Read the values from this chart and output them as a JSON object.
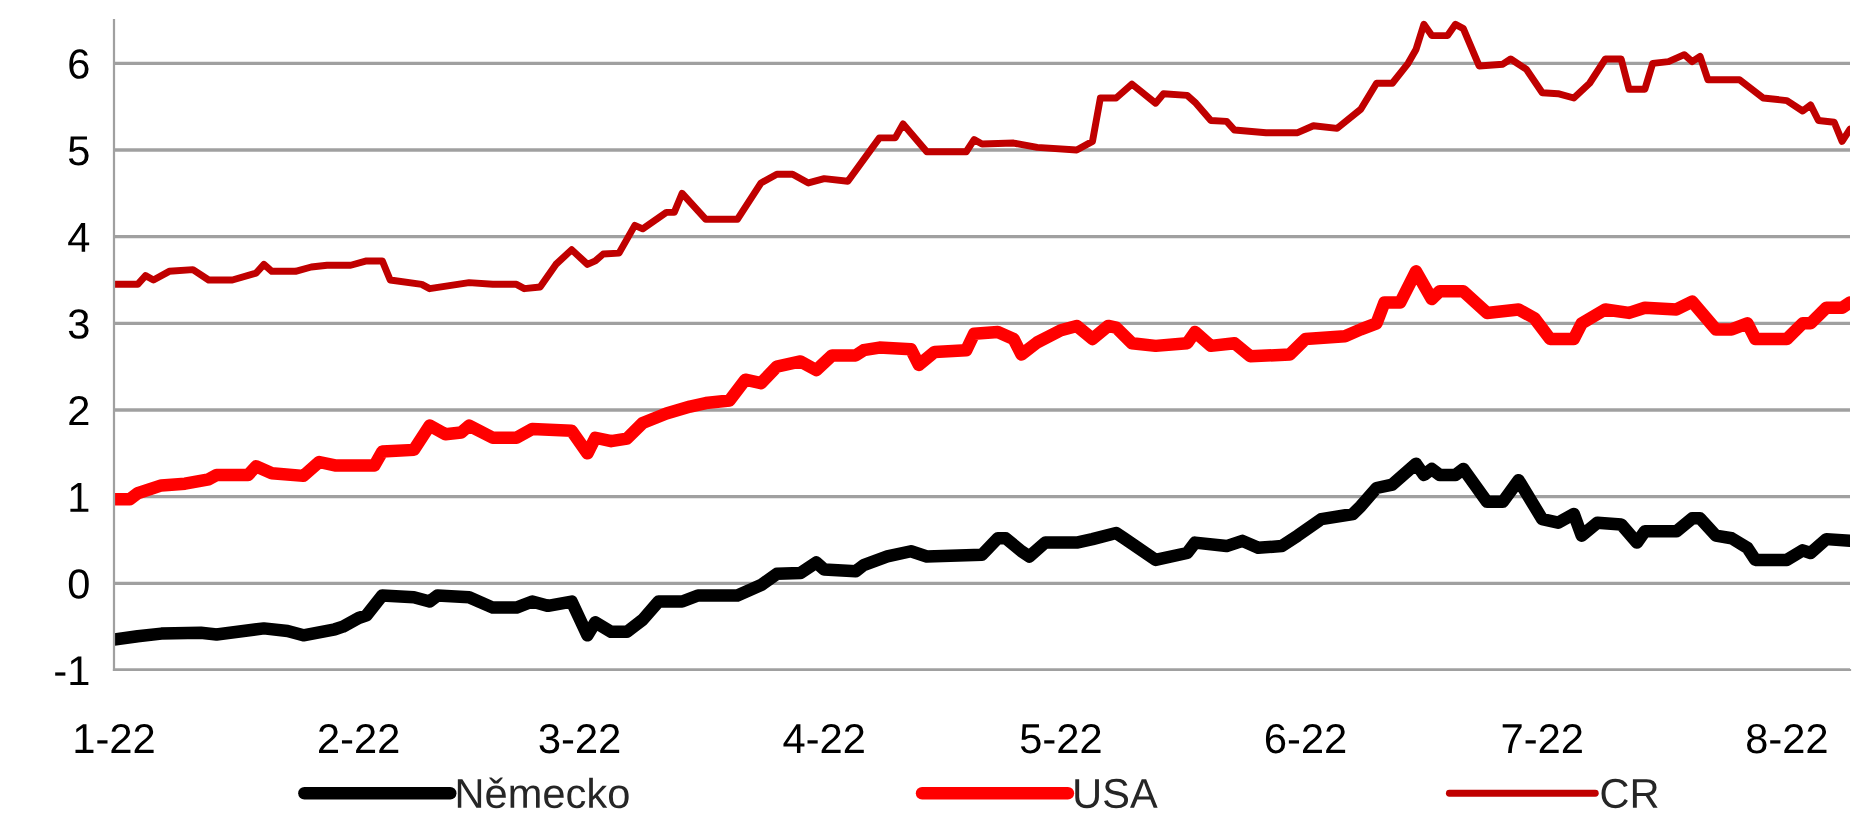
{
  "chart_data": {
    "type": "line",
    "xlim": [
      "2022-01-01",
      "2022-08-09"
    ],
    "ylim": [
      -1,
      6.5
    ],
    "xticks": [
      {
        "value": "2022-01-01",
        "label": "1-22"
      },
      {
        "value": "2022-02-01",
        "label": "2-22"
      },
      {
        "value": "2022-03-01",
        "label": "3-22"
      },
      {
        "value": "2022-04-01",
        "label": "4-22"
      },
      {
        "value": "2022-05-01",
        "label": "5-22"
      },
      {
        "value": "2022-06-01",
        "label": "6-22"
      },
      {
        "value": "2022-07-01",
        "label": "7-22"
      },
      {
        "value": "2022-08-01",
        "label": "8-22"
      }
    ],
    "yticks": [
      -1,
      0,
      1,
      2,
      3,
      4,
      5,
      6
    ],
    "grid": "y",
    "legend": "bottom",
    "marker": "none",
    "line_style": "solid",
    "series": [
      {
        "name": "Německo",
        "color": "#000000",
        "x": [
          "2022-01-01",
          "2022-01-04",
          "2022-01-07",
          "2022-01-12",
          "2022-01-14",
          "2022-01-20",
          "2022-01-23",
          "2022-01-25",
          "2022-01-29",
          "2022-01-30",
          "2022-02-01",
          "2022-02-02",
          "2022-02-04",
          "2022-02-08",
          "2022-02-10",
          "2022-02-11",
          "2022-02-15",
          "2022-02-18",
          "2022-02-21",
          "2022-02-23",
          "2022-02-25",
          "2022-02-28",
          "2022-03-02",
          "2022-03-03",
          "2022-03-05",
          "2022-03-07",
          "2022-03-09",
          "2022-03-11",
          "2022-03-14",
          "2022-03-16",
          "2022-03-21",
          "2022-03-24",
          "2022-03-26",
          "2022-03-29",
          "2022-03-31",
          "2022-04-01",
          "2022-04-05",
          "2022-04-06",
          "2022-04-09",
          "2022-04-12",
          "2022-04-14",
          "2022-04-21",
          "2022-04-23",
          "2022-04-24",
          "2022-04-26",
          "2022-04-27",
          "2022-04-29",
          "2022-05-03",
          "2022-05-05",
          "2022-05-08",
          "2022-05-09",
          "2022-05-13",
          "2022-05-17",
          "2022-05-18",
          "2022-05-22",
          "2022-05-24",
          "2022-05-26",
          "2022-05-29",
          "2022-05-31",
          "2022-06-03",
          "2022-06-07",
          "2022-06-08",
          "2022-06-10",
          "2022-06-12",
          "2022-06-15",
          "2022-06-16",
          "2022-06-17",
          "2022-06-18",
          "2022-06-20",
          "2022-06-21",
          "2022-06-24",
          "2022-06-26",
          "2022-06-28",
          "2022-07-01",
          "2022-07-03",
          "2022-07-05",
          "2022-07-06",
          "2022-07-08",
          "2022-07-11",
          "2022-07-13",
          "2022-07-14",
          "2022-07-18",
          "2022-07-20",
          "2022-07-21",
          "2022-07-23",
          "2022-07-25",
          "2022-07-27",
          "2022-07-28",
          "2022-08-01",
          "2022-08-03",
          "2022-08-04",
          "2022-08-06",
          "2022-08-09"
        ],
        "values": [
          -0.65,
          -0.61,
          -0.58,
          -0.57,
          -0.59,
          -0.52,
          -0.55,
          -0.6,
          -0.53,
          -0.5,
          -0.4,
          -0.37,
          -0.14,
          -0.16,
          -0.21,
          -0.14,
          -0.16,
          -0.28,
          -0.28,
          -0.21,
          -0.26,
          -0.21,
          -0.6,
          -0.45,
          -0.56,
          -0.56,
          -0.42,
          -0.21,
          -0.21,
          -0.14,
          -0.14,
          -0.02,
          0.11,
          0.12,
          0.24,
          0.16,
          0.14,
          0.21,
          0.31,
          0.37,
          0.31,
          0.33,
          0.52,
          0.52,
          0.37,
          0.31,
          0.47,
          0.47,
          0.51,
          0.58,
          0.52,
          0.27,
          0.35,
          0.47,
          0.43,
          0.49,
          0.41,
          0.43,
          0.55,
          0.74,
          0.8,
          0.89,
          1.1,
          1.14,
          1.38,
          1.25,
          1.32,
          1.25,
          1.25,
          1.32,
          0.94,
          0.94,
          1.19,
          0.74,
          0.7,
          0.8,
          0.55,
          0.7,
          0.68,
          0.47,
          0.6,
          0.6,
          0.75,
          0.75,
          0.55,
          0.52,
          0.41,
          0.27,
          0.27,
          0.38,
          0.35,
          0.51,
          0.49
        ]
      },
      {
        "name": "USA",
        "color": "#ff0000",
        "x": [
          "2022-01-01",
          "2022-01-03",
          "2022-01-04",
          "2022-01-07",
          "2022-01-10",
          "2022-01-13",
          "2022-01-14",
          "2022-01-18",
          "2022-01-19",
          "2022-01-21",
          "2022-01-25",
          "2022-01-27",
          "2022-01-29",
          "2022-02-03",
          "2022-02-04",
          "2022-02-08",
          "2022-02-10",
          "2022-02-12",
          "2022-02-14",
          "2022-02-15",
          "2022-02-18",
          "2022-02-21",
          "2022-02-23",
          "2022-02-28",
          "2022-03-02",
          "2022-03-03",
          "2022-03-05",
          "2022-03-07",
          "2022-03-09",
          "2022-03-12",
          "2022-03-15",
          "2022-03-17",
          "2022-03-20",
          "2022-03-22",
          "2022-03-24",
          "2022-03-26",
          "2022-03-29",
          "2022-03-31",
          "2022-04-02",
          "2022-04-05",
          "2022-04-06",
          "2022-04-08",
          "2022-04-12",
          "2022-04-13",
          "2022-04-15",
          "2022-04-19",
          "2022-04-20",
          "2022-04-23",
          "2022-04-25",
          "2022-04-26",
          "2022-04-28",
          "2022-05-01",
          "2022-05-03",
          "2022-05-05",
          "2022-05-07",
          "2022-05-08",
          "2022-05-10",
          "2022-05-13",
          "2022-05-17",
          "2022-05-18",
          "2022-05-20",
          "2022-05-23",
          "2022-05-25",
          "2022-05-30",
          "2022-06-01",
          "2022-06-06",
          "2022-06-08",
          "2022-06-10",
          "2022-06-11",
          "2022-06-13",
          "2022-06-15",
          "2022-06-17",
          "2022-06-18",
          "2022-06-21",
          "2022-06-24",
          "2022-06-28",
          "2022-06-30",
          "2022-07-02",
          "2022-07-05",
          "2022-07-06",
          "2022-07-09",
          "2022-07-12",
          "2022-07-14",
          "2022-07-18",
          "2022-07-20",
          "2022-07-23",
          "2022-07-25",
          "2022-07-27",
          "2022-07-28",
          "2022-08-01",
          "2022-08-03",
          "2022-08-04",
          "2022-08-06",
          "2022-08-08",
          "2022-08-09"
        ],
        "values": [
          0.97,
          0.97,
          1.04,
          1.13,
          1.15,
          1.2,
          1.25,
          1.25,
          1.35,
          1.27,
          1.24,
          1.4,
          1.36,
          1.36,
          1.52,
          1.54,
          1.82,
          1.72,
          1.74,
          1.82,
          1.68,
          1.68,
          1.78,
          1.76,
          1.5,
          1.68,
          1.64,
          1.67,
          1.85,
          1.96,
          2.04,
          2.08,
          2.11,
          2.35,
          2.31,
          2.5,
          2.56,
          2.46,
          2.63,
          2.63,
          2.69,
          2.72,
          2.7,
          2.52,
          2.67,
          2.69,
          2.88,
          2.9,
          2.82,
          2.64,
          2.78,
          2.92,
          2.97,
          2.82,
          2.97,
          2.95,
          2.77,
          2.74,
          2.77,
          2.9,
          2.74,
          2.77,
          2.62,
          2.64,
          2.82,
          2.85,
          2.93,
          3.0,
          3.24,
          3.24,
          3.6,
          3.28,
          3.37,
          3.37,
          3.12,
          3.16,
          3.06,
          2.82,
          2.82,
          3.0,
          3.16,
          3.12,
          3.18,
          3.16,
          3.25,
          2.93,
          2.93,
          3.0,
          2.82,
          2.82,
          3.0,
          3.0,
          3.18,
          3.18,
          3.24
        ]
      },
      {
        "name": "CR",
        "color": "#c00000",
        "x": [
          "2022-01-01",
          "2022-01-04",
          "2022-01-05",
          "2022-01-06",
          "2022-01-08",
          "2022-01-11",
          "2022-01-13",
          "2022-01-16",
          "2022-01-19",
          "2022-01-20",
          "2022-01-21",
          "2022-01-24",
          "2022-01-26",
          "2022-01-28",
          "2022-01-31",
          "2022-02-02",
          "2022-02-04",
          "2022-02-05",
          "2022-02-09",
          "2022-02-10",
          "2022-02-15",
          "2022-02-18",
          "2022-02-21",
          "2022-02-22",
          "2022-02-24",
          "2022-02-26",
          "2022-02-28",
          "2022-03-02",
          "2022-03-03",
          "2022-03-04",
          "2022-03-06",
          "2022-03-08",
          "2022-03-09",
          "2022-03-12",
          "2022-03-13",
          "2022-03-14",
          "2022-03-17",
          "2022-03-21",
          "2022-03-24",
          "2022-03-26",
          "2022-03-28",
          "2022-03-30",
          "2022-04-01",
          "2022-04-04",
          "2022-04-08",
          "2022-04-10",
          "2022-04-11",
          "2022-04-14",
          "2022-04-19",
          "2022-04-20",
          "2022-04-21",
          "2022-04-25",
          "2022-04-28",
          "2022-05-03",
          "2022-05-05",
          "2022-05-06",
          "2022-05-08",
          "2022-05-10",
          "2022-05-13",
          "2022-05-14",
          "2022-05-17",
          "2022-05-18",
          "2022-05-20",
          "2022-05-22",
          "2022-05-23",
          "2022-05-27",
          "2022-05-31",
          "2022-06-02",
          "2022-06-05",
          "2022-06-08",
          "2022-06-10",
          "2022-06-12",
          "2022-06-14",
          "2022-06-15",
          "2022-06-16",
          "2022-06-17",
          "2022-06-19",
          "2022-06-20",
          "2022-06-21",
          "2022-06-23",
          "2022-06-26",
          "2022-06-27",
          "2022-06-29",
          "2022-07-01",
          "2022-07-03",
          "2022-07-05",
          "2022-07-07",
          "2022-07-09",
          "2022-07-11",
          "2022-07-12",
          "2022-07-14",
          "2022-07-15",
          "2022-07-17",
          "2022-07-19",
          "2022-07-20",
          "2022-07-21",
          "2022-07-22",
          "2022-07-26",
          "2022-07-29",
          "2022-08-01",
          "2022-08-03",
          "2022-08-04",
          "2022-08-05",
          "2022-08-07",
          "2022-08-08",
          "2022-08-09"
        ],
        "values": [
          3.45,
          3.45,
          3.55,
          3.5,
          3.6,
          3.62,
          3.5,
          3.5,
          3.58,
          3.68,
          3.6,
          3.6,
          3.65,
          3.67,
          3.67,
          3.72,
          3.72,
          3.5,
          3.45,
          3.4,
          3.47,
          3.45,
          3.45,
          3.4,
          3.42,
          3.68,
          3.85,
          3.68,
          3.72,
          3.8,
          3.81,
          4.13,
          4.09,
          4.28,
          4.28,
          4.5,
          4.2,
          4.2,
          4.62,
          4.72,
          4.72,
          4.62,
          4.67,
          4.64,
          5.14,
          5.14,
          5.3,
          4.98,
          4.98,
          5.12,
          5.07,
          5.08,
          5.03,
          5.0,
          5.1,
          5.6,
          5.6,
          5.76,
          5.54,
          5.65,
          5.63,
          5.55,
          5.34,
          5.33,
          5.23,
          5.2,
          5.2,
          5.28,
          5.25,
          5.47,
          5.77,
          5.77,
          6.0,
          6.16,
          6.45,
          6.32,
          6.32,
          6.45,
          6.4,
          5.97,
          5.99,
          6.05,
          5.93,
          5.66,
          5.65,
          5.6,
          5.77,
          6.05,
          6.05,
          5.7,
          5.7,
          6.0,
          6.02,
          6.1,
          6.02,
          6.08,
          5.81,
          5.81,
          5.6,
          5.57,
          5.45,
          5.52,
          5.34,
          5.32,
          5.1,
          5.24
        ]
      }
    ]
  }
}
